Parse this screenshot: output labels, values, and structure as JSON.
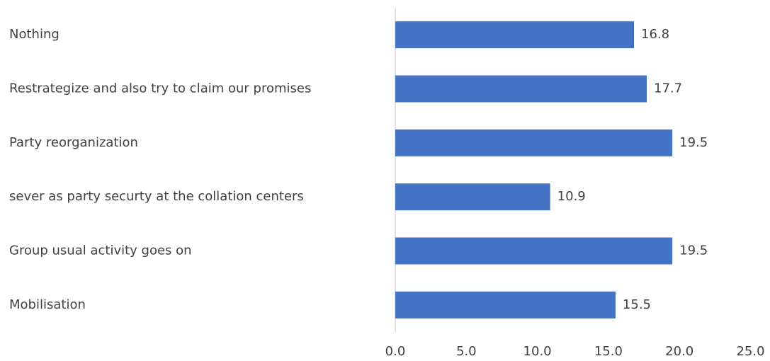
{
  "chart_data": {
    "type": "bar",
    "orientation": "horizontal",
    "categories": [
      "Nothing",
      "Restrategize and also try to claim our promises",
      "Party reorganization",
      "sever as party securty at the collation centers",
      "Group usual activity goes on",
      "Mobilisation"
    ],
    "values": [
      16.8,
      17.7,
      19.5,
      10.9,
      19.5,
      15.5
    ],
    "color": "#4472c4",
    "xlim": [
      0,
      25
    ],
    "xticks": [
      {
        "value": 0,
        "label": "0.0"
      },
      {
        "value": 5,
        "label": "5.0"
      },
      {
        "value": 10,
        "label": "10.0"
      },
      {
        "value": 15,
        "label": "15.0"
      },
      {
        "value": 20,
        "label": "20.0"
      },
      {
        "value": 25,
        "label": "25.0"
      }
    ],
    "grid": false
  }
}
